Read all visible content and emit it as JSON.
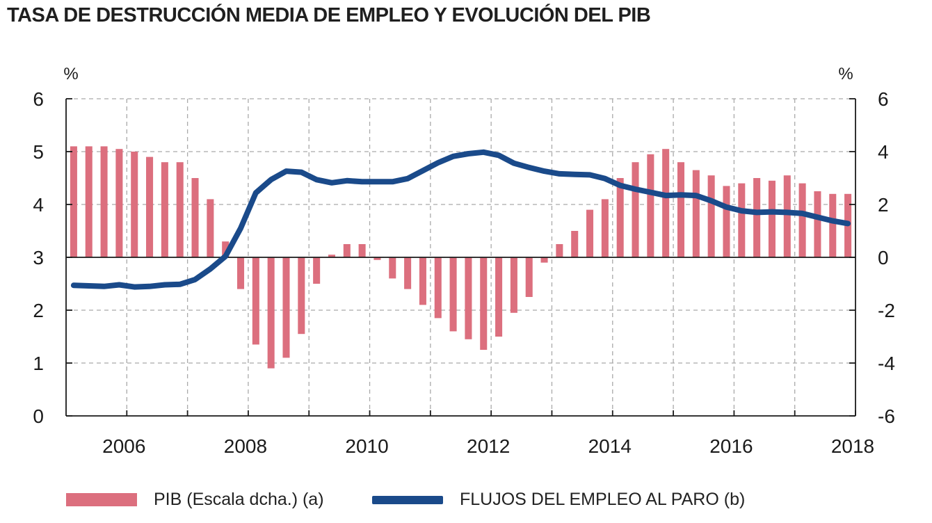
{
  "title": "TASA DE DESTRUCCIÓN MEDIA DE EMPLEO Y EVOLUCIÓN DEL PIB",
  "chart_data": {
    "type": "bar+line",
    "left_axis": {
      "unit": "%",
      "range": [
        0,
        6
      ],
      "ticks": [
        "0",
        "1",
        "2",
        "3",
        "4",
        "5",
        "6"
      ]
    },
    "right_axis": {
      "unit": "%",
      "range": [
        -6,
        6
      ],
      "ticks": [
        "-6",
        "-4",
        "-2",
        "0",
        "2",
        "4",
        "6"
      ]
    },
    "x_range": [
      2005.0,
      2018.0
    ],
    "x_ticks": [
      2006,
      2008,
      2010,
      2012,
      2014,
      2016,
      2018
    ],
    "x_tick_labels": [
      "2006",
      "2008",
      "2010",
      "2012",
      "2014",
      "2016",
      "2018"
    ],
    "grid": "dashed horizontal and vertical",
    "series": [
      {
        "name": "PIB (Escala dcha.) (a)",
        "type": "bar",
        "axis": "right",
        "color": "#dc6f7e",
        "x": [
          2005.125,
          2005.375,
          2005.625,
          2005.875,
          2006.125,
          2006.375,
          2006.625,
          2006.875,
          2007.125,
          2007.375,
          2007.625,
          2007.875,
          2008.125,
          2008.375,
          2008.625,
          2008.875,
          2009.125,
          2009.375,
          2009.625,
          2009.875,
          2010.125,
          2010.375,
          2010.625,
          2010.875,
          2011.125,
          2011.375,
          2011.625,
          2011.875,
          2012.125,
          2012.375,
          2012.625,
          2012.875,
          2013.125,
          2013.375,
          2013.625,
          2013.875,
          2014.125,
          2014.375,
          2014.625,
          2014.875,
          2015.125,
          2015.375,
          2015.625,
          2015.875,
          2016.125,
          2016.375,
          2016.625,
          2016.875,
          2017.125,
          2017.375,
          2017.625,
          2017.875
        ],
        "values": [
          4.2,
          4.2,
          4.2,
          4.1,
          4.0,
          3.8,
          3.6,
          3.6,
          3.0,
          2.2,
          0.6,
          -1.2,
          -3.3,
          -4.2,
          -3.8,
          -2.9,
          -1.0,
          0.1,
          0.5,
          0.5,
          -0.1,
          -0.8,
          -1.2,
          -1.8,
          -2.3,
          -2.8,
          -3.1,
          -3.5,
          -3.0,
          -2.1,
          -1.5,
          -0.2,
          0.5,
          1.0,
          1.8,
          2.2,
          3.0,
          3.6,
          3.9,
          4.1,
          3.6,
          3.3,
          3.1,
          2.7,
          2.8,
          3.0,
          2.9,
          3.1,
          2.8,
          2.5,
          2.4,
          2.4
        ]
      },
      {
        "name": "FLUJOS DEL EMPLEO AL PARO (b)",
        "type": "line",
        "axis": "left",
        "color": "#1a4a8a",
        "x": [
          2005.125,
          2005.375,
          2005.625,
          2005.875,
          2006.125,
          2006.375,
          2006.625,
          2006.875,
          2007.125,
          2007.375,
          2007.625,
          2007.875,
          2008.125,
          2008.375,
          2008.625,
          2008.875,
          2009.125,
          2009.375,
          2009.625,
          2009.875,
          2010.125,
          2010.375,
          2010.625,
          2010.875,
          2011.125,
          2011.375,
          2011.625,
          2011.875,
          2012.125,
          2012.375,
          2012.625,
          2012.875,
          2013.125,
          2013.375,
          2013.625,
          2013.875,
          2014.125,
          2014.375,
          2014.625,
          2014.875,
          2015.125,
          2015.375,
          2015.625,
          2015.875,
          2016.125,
          2016.375,
          2016.625,
          2016.875,
          2017.125,
          2017.375,
          2017.625,
          2017.875
        ],
        "values": [
          2.47,
          2.46,
          2.45,
          2.48,
          2.44,
          2.45,
          2.48,
          2.49,
          2.58,
          2.78,
          3.02,
          3.55,
          4.22,
          4.47,
          4.63,
          4.61,
          4.47,
          4.41,
          4.45,
          4.43,
          4.43,
          4.43,
          4.49,
          4.64,
          4.79,
          4.91,
          4.96,
          4.99,
          4.93,
          4.78,
          4.7,
          4.63,
          4.58,
          4.57,
          4.56,
          4.49,
          4.36,
          4.29,
          4.23,
          4.17,
          4.18,
          4.17,
          4.07,
          3.95,
          3.88,
          3.85,
          3.86,
          3.85,
          3.83,
          3.76,
          3.69,
          3.64
        ]
      }
    ],
    "legend": [
      "PIB (Escala dcha.) (a)",
      "FLUJOS DEL EMPLEO AL PARO (b)"
    ],
    "legend_position": "bottom"
  }
}
